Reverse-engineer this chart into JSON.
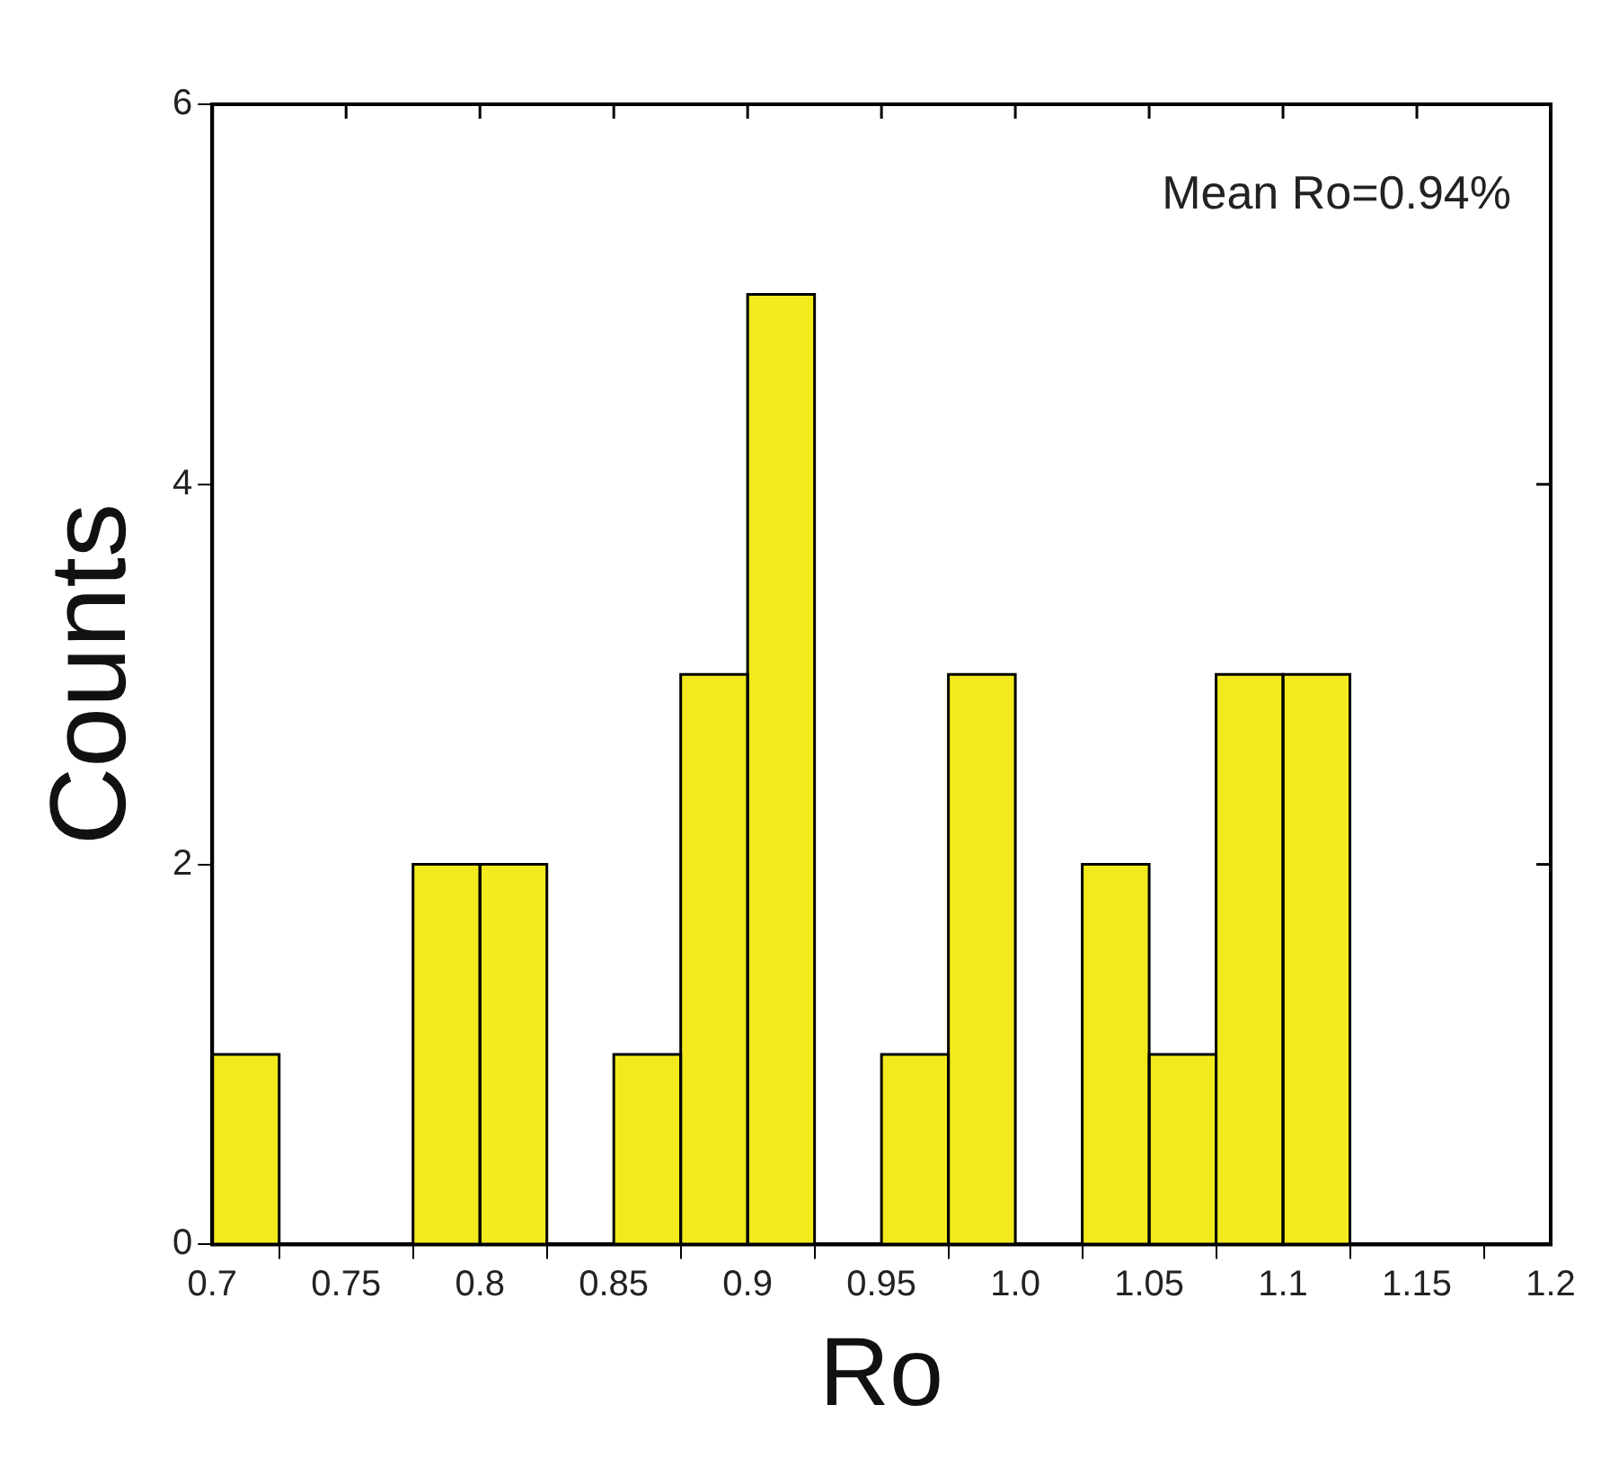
{
  "chart_data": {
    "type": "histogram",
    "xlabel": "Ro",
    "ylabel": "Counts",
    "bins": [
      0.7,
      0.725,
      0.75,
      0.775,
      0.8,
      0.825,
      0.85,
      0.875,
      0.9,
      0.925,
      0.95,
      0.975,
      1.0,
      1.025,
      1.05,
      1.075,
      1.1,
      1.125,
      1.15,
      1.175,
      1.2
    ],
    "values": [
      1,
      0,
      0,
      2,
      2,
      0,
      1,
      3,
      5,
      0,
      1,
      3,
      0,
      2,
      1,
      3,
      3,
      0,
      0,
      0
    ],
    "color": "#f2ea1c",
    "xlim": [
      0.7,
      1.2
    ],
    "xticks": [
      0.7,
      0.75,
      0.8,
      0.85,
      0.9,
      0.95,
      {
        "value": 1,
        "label": "1.0"
      },
      1.05,
      1.1,
      1.15,
      1.2
    ],
    "ylim": [
      0,
      6
    ],
    "yticks": [
      0,
      2,
      4,
      6
    ],
    "annotations": [
      "Mean Ro=0.94%"
    ]
  }
}
